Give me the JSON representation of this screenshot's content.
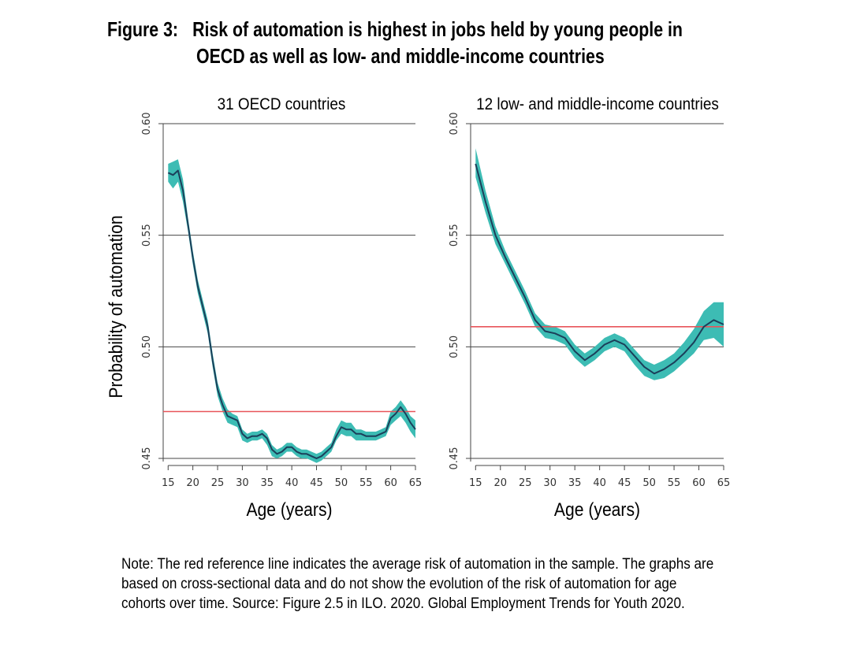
{
  "figure": {
    "label": "Figure 3:",
    "title_line1": "Risk of automation is highest in jobs held by young people in",
    "title_line2": "OECD as well as low- and middle-income countries"
  },
  "note": {
    "line1": "Note: The red reference line indicates the average risk of automation in the sample. The graphs are",
    "line2": "based on cross-sectional data and do not show the evolution of the risk of automation for age",
    "line3": "cohorts over time. Source: Figure 2.5 in ILO. 2020. Global Employment Trends for Youth 2020."
  },
  "colors": {
    "band": "#3dbcb4",
    "line": "#1b3f5a",
    "reference": "#e8555a",
    "grid": "#444444"
  },
  "chart_data": [
    {
      "type": "line",
      "title": "31 OECD countries",
      "xlabel": "Age (years)",
      "ylabel": "Probability of automation",
      "xlim": [
        14,
        65
      ],
      "ylim": [
        0.45,
        0.6
      ],
      "xticks": [
        15,
        20,
        25,
        30,
        35,
        40,
        45,
        50,
        55,
        60,
        65
      ],
      "yticks": [
        "0.45",
        "0.50",
        "0.55",
        "0.60"
      ],
      "reference_line": 0.471,
      "x": [
        15,
        16,
        17,
        18,
        19,
        20,
        21,
        22,
        23,
        24,
        25,
        26,
        27,
        28,
        29,
        30,
        31,
        32,
        33,
        34,
        35,
        36,
        37,
        38,
        39,
        40,
        41,
        42,
        43,
        44,
        45,
        46,
        47,
        48,
        49,
        50,
        51,
        52,
        53,
        54,
        55,
        56,
        57,
        58,
        59,
        60,
        61,
        62,
        63,
        64,
        65
      ],
      "series": [
        {
          "role": "estimate",
          "values": [
            0.578,
            0.577,
            0.579,
            0.57,
            0.555,
            0.54,
            0.527,
            0.518,
            0.509,
            0.494,
            0.481,
            0.474,
            0.469,
            0.468,
            0.467,
            0.461,
            0.459,
            0.46,
            0.46,
            0.461,
            0.459,
            0.454,
            0.452,
            0.453,
            0.455,
            0.455,
            0.453,
            0.452,
            0.452,
            0.451,
            0.45,
            0.451,
            0.453,
            0.455,
            0.46,
            0.464,
            0.463,
            0.463,
            0.461,
            0.461,
            0.46,
            0.46,
            0.46,
            0.461,
            0.462,
            0.468,
            0.47,
            0.473,
            0.47,
            0.466,
            0.463
          ]
        },
        {
          "role": "ci_upper",
          "values": [
            0.582,
            0.583,
            0.584,
            0.575,
            0.558,
            0.543,
            0.53,
            0.521,
            0.512,
            0.497,
            0.484,
            0.477,
            0.472,
            0.47,
            0.469,
            0.463,
            0.461,
            0.462,
            0.462,
            0.463,
            0.461,
            0.456,
            0.454,
            0.455,
            0.457,
            0.457,
            0.455,
            0.454,
            0.454,
            0.453,
            0.452,
            0.453,
            0.455,
            0.457,
            0.463,
            0.467,
            0.466,
            0.466,
            0.463,
            0.463,
            0.462,
            0.462,
            0.462,
            0.463,
            0.464,
            0.471,
            0.473,
            0.476,
            0.473,
            0.469,
            0.467
          ]
        },
        {
          "role": "ci_lower",
          "values": [
            0.574,
            0.571,
            0.574,
            0.565,
            0.552,
            0.537,
            0.524,
            0.515,
            0.506,
            0.491,
            0.478,
            0.471,
            0.466,
            0.465,
            0.464,
            0.458,
            0.457,
            0.458,
            0.458,
            0.459,
            0.456,
            0.451,
            0.45,
            0.451,
            0.453,
            0.453,
            0.451,
            0.45,
            0.45,
            0.449,
            0.448,
            0.449,
            0.451,
            0.453,
            0.458,
            0.461,
            0.46,
            0.46,
            0.458,
            0.458,
            0.458,
            0.458,
            0.458,
            0.459,
            0.46,
            0.465,
            0.467,
            0.469,
            0.466,
            0.462,
            0.459
          ]
        }
      ]
    },
    {
      "type": "line",
      "title": "12 low- and middle-income countries",
      "xlabel": "Age (years)",
      "ylabel": "",
      "xlim": [
        14,
        65
      ],
      "ylim": [
        0.45,
        0.6
      ],
      "xticks": [
        15,
        20,
        25,
        30,
        35,
        40,
        45,
        50,
        55,
        60,
        65
      ],
      "yticks": [
        "0.45",
        "0.50",
        "0.55",
        "0.60"
      ],
      "reference_line": 0.509,
      "x": [
        15,
        17,
        19,
        21,
        23,
        25,
        27,
        29,
        31,
        33,
        35,
        37,
        39,
        41,
        43,
        45,
        47,
        49,
        51,
        53,
        55,
        57,
        59,
        61,
        63,
        65
      ],
      "series": [
        {
          "role": "estimate",
          "values": [
            0.582,
            0.565,
            0.55,
            0.54,
            0.531,
            0.522,
            0.512,
            0.507,
            0.506,
            0.504,
            0.498,
            0.494,
            0.497,
            0.501,
            0.503,
            0.501,
            0.496,
            0.491,
            0.488,
            0.49,
            0.493,
            0.497,
            0.502,
            0.509,
            0.512,
            0.51
          ]
        },
        {
          "role": "ci_upper",
          "values": [
            0.589,
            0.57,
            0.554,
            0.543,
            0.534,
            0.525,
            0.515,
            0.51,
            0.509,
            0.507,
            0.501,
            0.497,
            0.5,
            0.504,
            0.506,
            0.504,
            0.499,
            0.494,
            0.492,
            0.494,
            0.497,
            0.502,
            0.508,
            0.516,
            0.52,
            0.52
          ]
        },
        {
          "role": "ci_lower",
          "values": [
            0.576,
            0.56,
            0.546,
            0.537,
            0.528,
            0.519,
            0.509,
            0.504,
            0.503,
            0.501,
            0.495,
            0.491,
            0.494,
            0.498,
            0.5,
            0.498,
            0.492,
            0.487,
            0.485,
            0.486,
            0.489,
            0.493,
            0.497,
            0.503,
            0.504,
            0.5
          ]
        }
      ]
    }
  ]
}
